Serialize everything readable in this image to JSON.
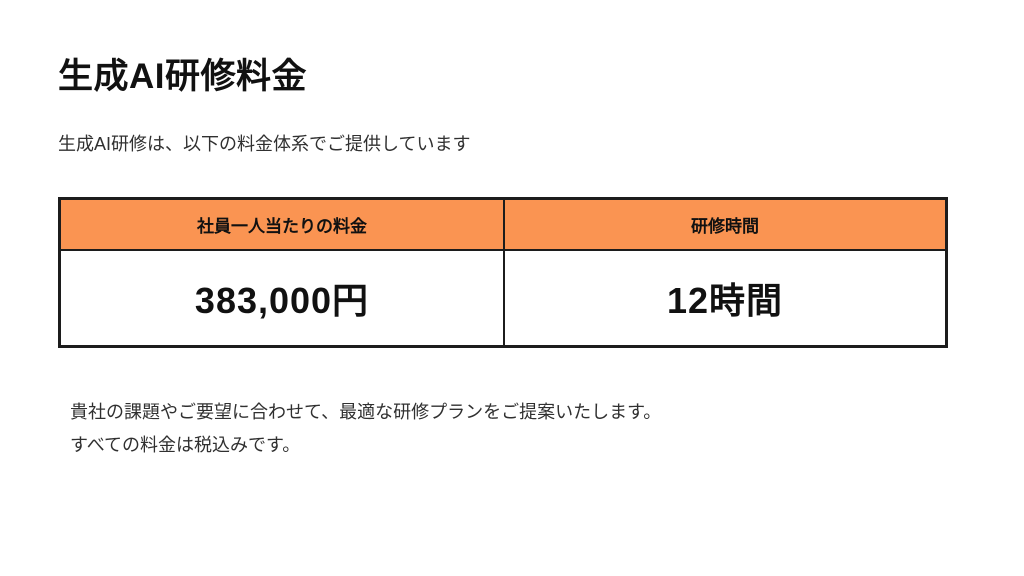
{
  "slide": {
    "title": "生成AI研修料金",
    "subtitle": "生成AI研修は、以下の料金体系でご提供しています",
    "table": {
      "headers": [
        "社員一人当たりの料金",
        "研修時間"
      ],
      "rows": [
        [
          "383,000円",
          "12時間"
        ]
      ]
    },
    "notes": [
      "貴社の課題やご要望に合わせて、最適な研修プランをご提案いたします。",
      "すべての料金は税込みです。"
    ],
    "colors": {
      "header_bg": "#FA9452",
      "border": "#1C1C1C",
      "title_text": "#111111",
      "body_text": "#303030"
    }
  }
}
